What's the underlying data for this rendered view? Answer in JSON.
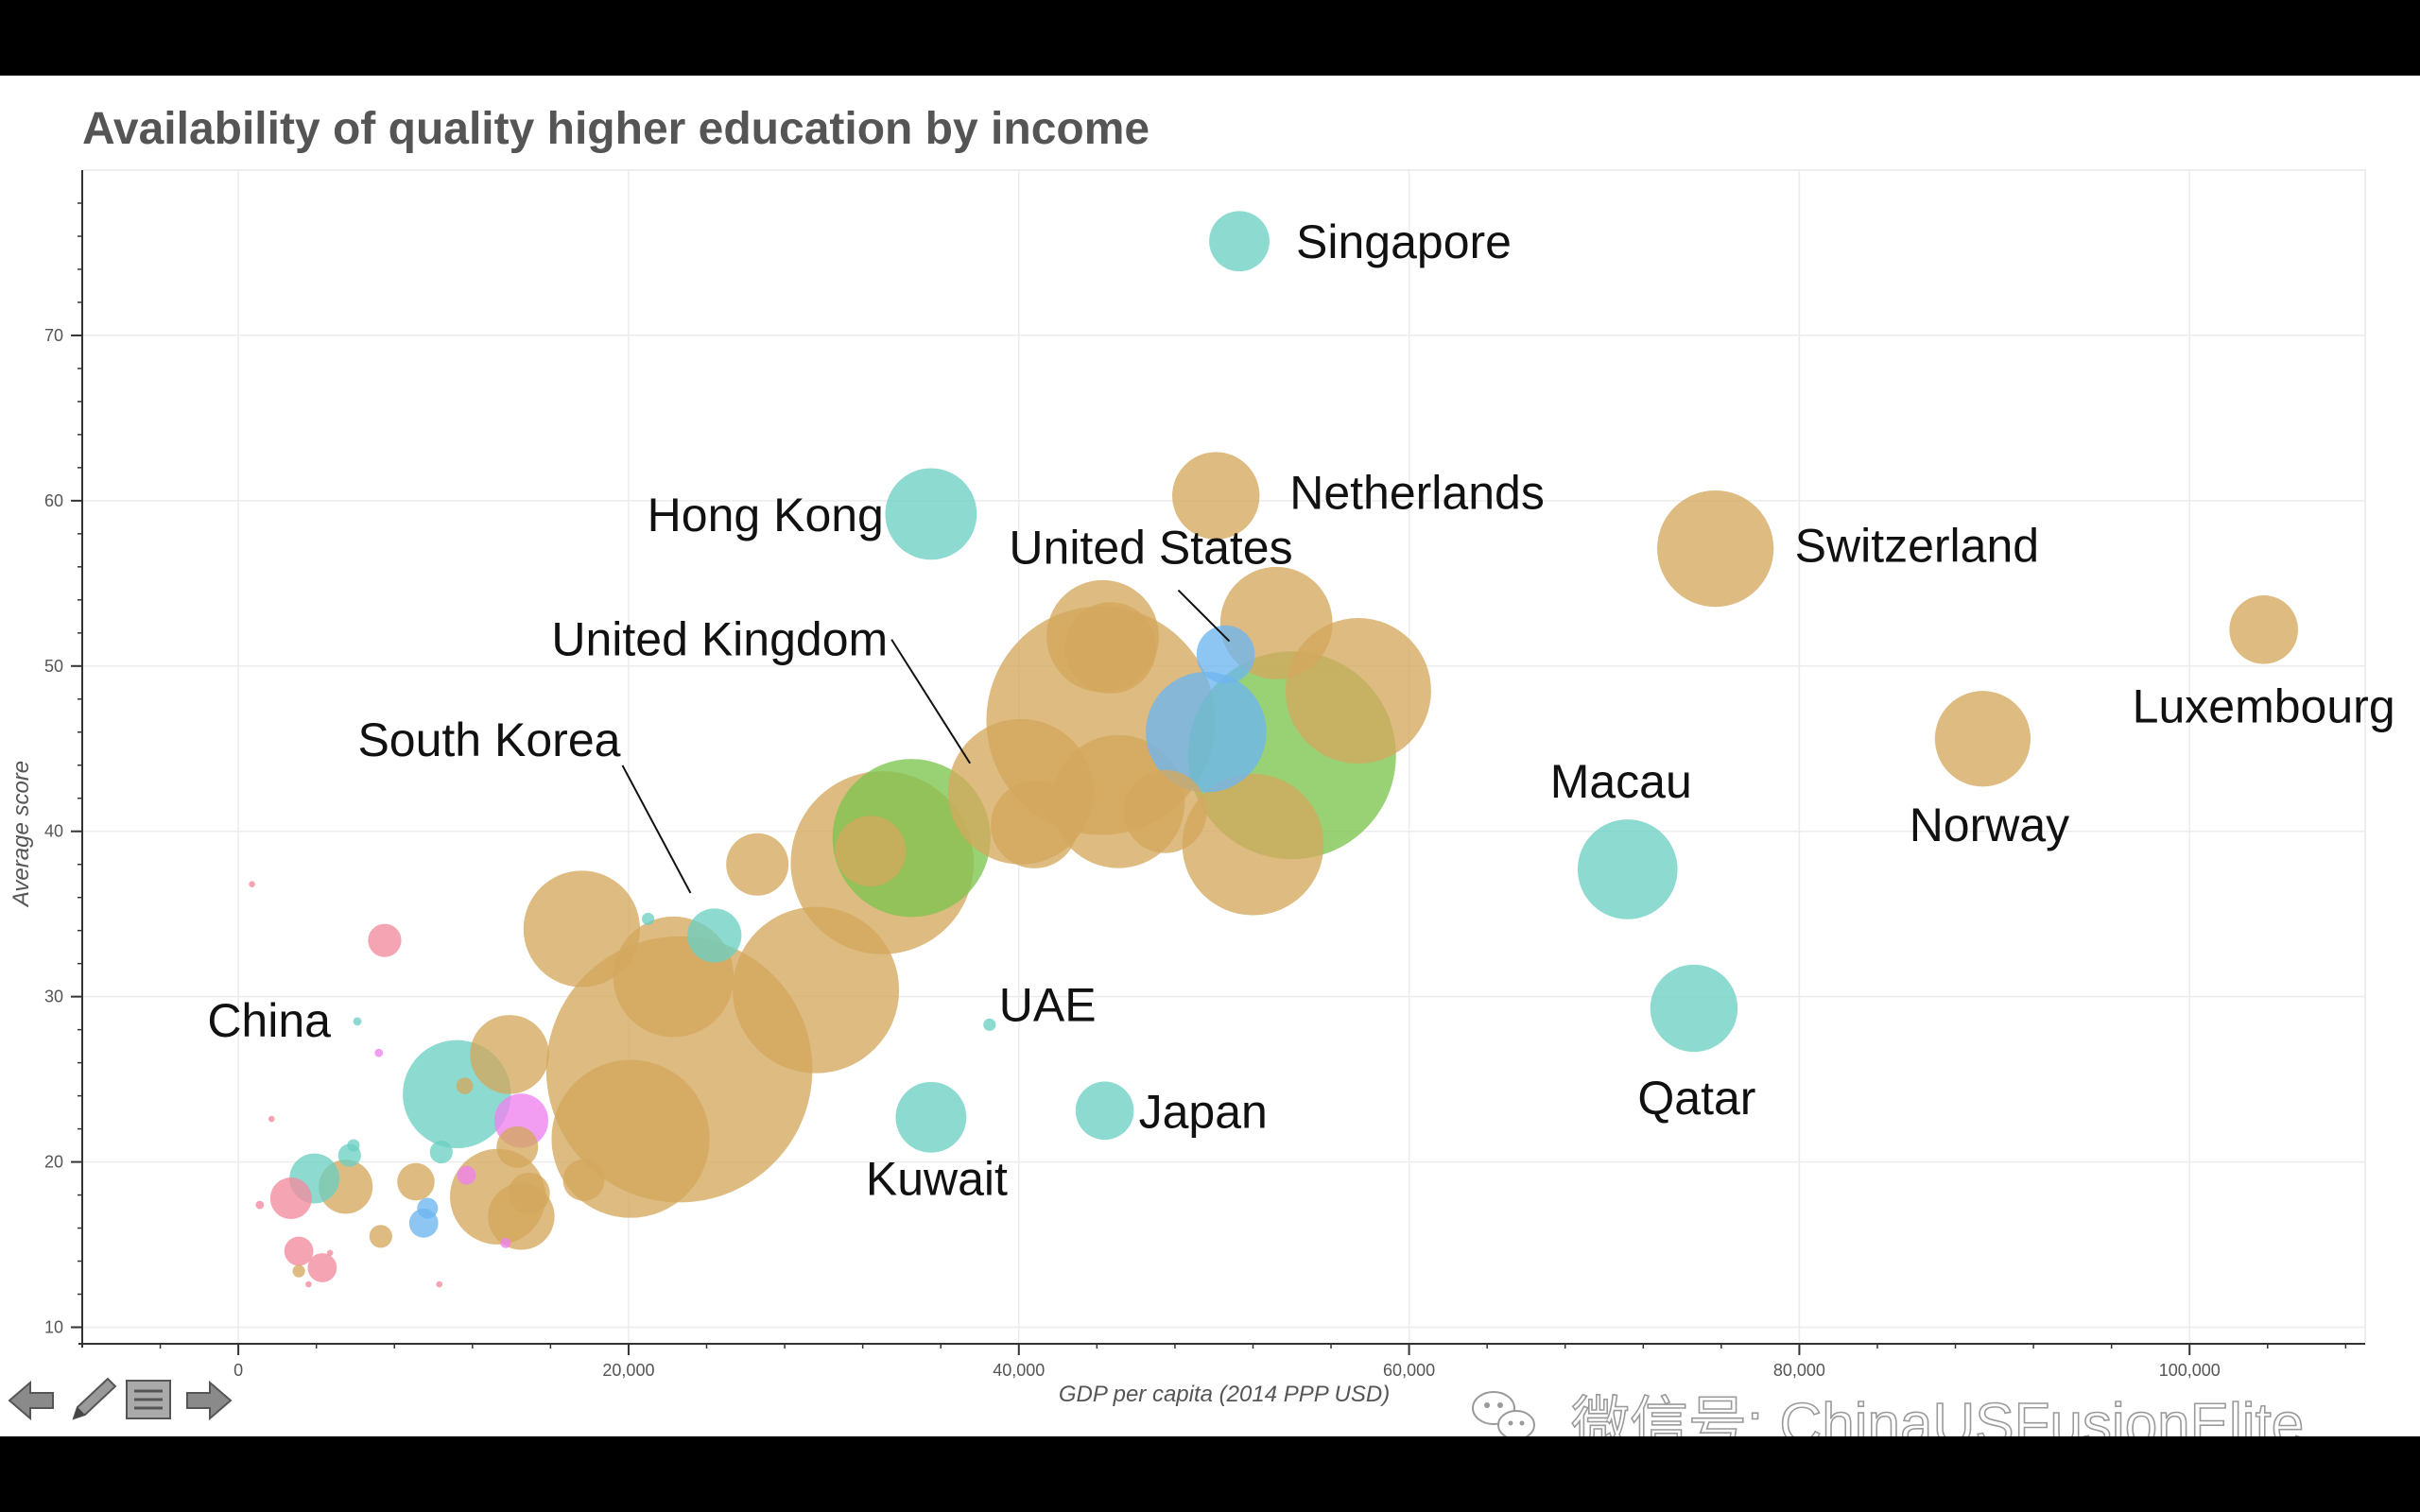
{
  "chart_data": {
    "type": "scatter",
    "title": "Availability of quality higher education by income",
    "xlabel": "GDP per capita (2014 PPP USD)",
    "ylabel": "Average score",
    "xlim": [
      -8000,
      109000
    ],
    "ylim": [
      9,
      80
    ],
    "xticks": [
      0,
      20000,
      40000,
      60000,
      80000,
      100000
    ],
    "xtick_labels": [
      "0",
      "20,000",
      "40,000",
      "60,000",
      "80,000",
      "100,000"
    ],
    "yticks": [
      10,
      20,
      30,
      40,
      50,
      60,
      70
    ],
    "ytick_labels": [
      "10",
      "20",
      "30",
      "40",
      "50",
      "60",
      "70"
    ],
    "grid": true,
    "bubble_size_encoding": "area",
    "colors": {
      "teal": "#6ccfc3",
      "gold": "#d4a85e",
      "green": "#7cc44e",
      "blue": "#6db6ef",
      "pink": "#f28b9d",
      "magenta": "#ee82ee"
    },
    "labels": [
      {
        "text": "Singapore",
        "x": 51300,
        "y": 75.7
      },
      {
        "text": "Hong Kong",
        "x": 35500,
        "y": 59.2
      },
      {
        "text": "Netherlands",
        "x": 50100,
        "y": 60.3
      },
      {
        "text": "Switzerland",
        "x": 75700,
        "y": 57.1
      },
      {
        "text": "Luxembourg",
        "x": 103800,
        "y": 52.2
      },
      {
        "text": "United States",
        "x": 50500,
        "y": 50.7
      },
      {
        "text": "United Kingdom",
        "x": 37500,
        "y": 44
      },
      {
        "text": "South Korea",
        "x": 23900,
        "y": 34.5
      },
      {
        "text": "Macau",
        "x": 71200,
        "y": 37.7
      },
      {
        "text": "Norway",
        "x": 89400,
        "y": 45.6
      },
      {
        "text": "China",
        "x": 6000,
        "y": 28.6
      },
      {
        "text": "UAE",
        "x": 38500,
        "y": 28.3
      },
      {
        "text": "Qatar",
        "x": 74600,
        "y": 29.3
      },
      {
        "text": "Kuwait",
        "x": 35500,
        "y": 22.7
      },
      {
        "text": "Japan",
        "x": 44400,
        "y": 23.1
      }
    ],
    "points": [
      {
        "x": 51300,
        "y": 75.7,
        "size": 29,
        "color": "teal"
      },
      {
        "x": 35500,
        "y": 59.2,
        "size": 44,
        "color": "teal"
      },
      {
        "x": 50100,
        "y": 60.3,
        "size": 42,
        "color": "gold"
      },
      {
        "x": 75700,
        "y": 57.1,
        "size": 56,
        "color": "gold"
      },
      {
        "x": 103800,
        "y": 52.2,
        "size": 33,
        "color": "gold"
      },
      {
        "x": 89400,
        "y": 45.6,
        "size": 46,
        "color": "gold"
      },
      {
        "x": 71200,
        "y": 37.7,
        "size": 48,
        "color": "teal"
      },
      {
        "x": 74600,
        "y": 29.3,
        "size": 42,
        "color": "teal"
      },
      {
        "x": 44400,
        "y": 23.1,
        "size": 28,
        "color": "teal"
      },
      {
        "x": 35500,
        "y": 22.7,
        "size": 34,
        "color": "teal"
      },
      {
        "x": 38500,
        "y": 28.3,
        "size": 6,
        "color": "teal"
      },
      {
        "x": 53200,
        "y": 52.6,
        "size": 54,
        "color": "gold"
      },
      {
        "x": 44300,
        "y": 51.8,
        "size": 54,
        "color": "gold"
      },
      {
        "x": 44700,
        "y": 51.1,
        "size": 44,
        "color": "gold"
      },
      {
        "x": 57400,
        "y": 48.5,
        "size": 70,
        "color": "gold"
      },
      {
        "x": 44200,
        "y": 46.7,
        "size": 110,
        "color": "gold"
      },
      {
        "x": 40100,
        "y": 42.4,
        "size": 70,
        "color": "gold"
      },
      {
        "x": 45100,
        "y": 41.8,
        "size": 64,
        "color": "gold"
      },
      {
        "x": 47500,
        "y": 41.2,
        "size": 40,
        "color": "gold"
      },
      {
        "x": 40800,
        "y": 40.4,
        "size": 42,
        "color": "gold"
      },
      {
        "x": 52000,
        "y": 39.2,
        "size": 68,
        "color": "gold"
      },
      {
        "x": 33000,
        "y": 38.1,
        "size": 88,
        "color": "gold"
      },
      {
        "x": 32400,
        "y": 38.8,
        "size": 34,
        "color": "gold"
      },
      {
        "x": 26600,
        "y": 38.0,
        "size": 30,
        "color": "gold"
      },
      {
        "x": 29600,
        "y": 30.4,
        "size": 80,
        "color": "gold"
      },
      {
        "x": 17600,
        "y": 34.1,
        "size": 56,
        "color": "gold"
      },
      {
        "x": 22300,
        "y": 31.2,
        "size": 58,
        "color": "gold"
      },
      {
        "x": 22600,
        "y": 25.6,
        "size": 128,
        "color": "gold"
      },
      {
        "x": 20100,
        "y": 21.4,
        "size": 76,
        "color": "gold"
      },
      {
        "x": 13900,
        "y": 26.5,
        "size": 38,
        "color": "gold"
      },
      {
        "x": 13300,
        "y": 17.9,
        "size": 46,
        "color": "gold"
      },
      {
        "x": 14500,
        "y": 16.7,
        "size": 32,
        "color": "gold"
      },
      {
        "x": 14900,
        "y": 18.1,
        "size": 20,
        "color": "gold"
      },
      {
        "x": 14300,
        "y": 20.9,
        "size": 20,
        "color": "gold"
      },
      {
        "x": 17700,
        "y": 18.9,
        "size": 20,
        "color": "gold"
      },
      {
        "x": 5500,
        "y": 18.5,
        "size": 26,
        "color": "gold"
      },
      {
        "x": 9100,
        "y": 18.8,
        "size": 18,
        "color": "gold"
      },
      {
        "x": 7300,
        "y": 15.5,
        "size": 11,
        "color": "gold"
      },
      {
        "x": 11600,
        "y": 24.6,
        "size": 8,
        "color": "gold"
      },
      {
        "x": 3100,
        "y": 13.4,
        "size": 6,
        "color": "gold"
      },
      {
        "x": 34500,
        "y": 39.6,
        "size": 76,
        "color": "green"
      },
      {
        "x": 54000,
        "y": 44.6,
        "size": 100,
        "color": "green"
      },
      {
        "x": 49600,
        "y": 46.0,
        "size": 58,
        "color": "blue"
      },
      {
        "x": 50600,
        "y": 50.7,
        "size": 28,
        "color": "blue"
      },
      {
        "x": 11200,
        "y": 24.1,
        "size": 52,
        "color": "teal"
      },
      {
        "x": 3900,
        "y": 19.0,
        "size": 24,
        "color": "teal"
      },
      {
        "x": 24400,
        "y": 33.7,
        "size": 26,
        "color": "teal"
      },
      {
        "x": 10400,
        "y": 20.6,
        "size": 11,
        "color": "teal"
      },
      {
        "x": 5700,
        "y": 20.4,
        "size": 11,
        "color": "teal"
      },
      {
        "x": 5900,
        "y": 21.0,
        "size": 6,
        "color": "teal"
      },
      {
        "x": 21000,
        "y": 34.7,
        "size": 6,
        "color": "teal"
      },
      {
        "x": 6100,
        "y": 28.5,
        "size": 4,
        "color": "teal"
      },
      {
        "x": 9500,
        "y": 16.3,
        "size": 14,
        "color": "blue"
      },
      {
        "x": 9700,
        "y": 17.2,
        "size": 10,
        "color": "blue"
      },
      {
        "x": 14500,
        "y": 22.5,
        "size": 26,
        "color": "magenta"
      },
      {
        "x": 11700,
        "y": 19.2,
        "size": 9,
        "color": "magenta"
      },
      {
        "x": 13700,
        "y": 15.1,
        "size": 5,
        "color": "magenta"
      },
      {
        "x": 7200,
        "y": 26.6,
        "size": 4,
        "color": "magenta"
      },
      {
        "x": 7500,
        "y": 33.4,
        "size": 16,
        "color": "pink"
      },
      {
        "x": 2700,
        "y": 17.8,
        "size": 20,
        "color": "pink"
      },
      {
        "x": 3100,
        "y": 14.6,
        "size": 14,
        "color": "pink"
      },
      {
        "x": 4300,
        "y": 13.6,
        "size": 14,
        "color": "pink"
      },
      {
        "x": 1100,
        "y": 17.4,
        "size": 4,
        "color": "pink"
      },
      {
        "x": 1700,
        "y": 22.6,
        "size": 3,
        "color": "pink"
      },
      {
        "x": 700,
        "y": 36.8,
        "size": 3,
        "color": "pink"
      },
      {
        "x": 4700,
        "y": 14.5,
        "size": 3,
        "color": "pink"
      },
      {
        "x": 3600,
        "y": 12.6,
        "size": 3,
        "color": "pink"
      },
      {
        "x": 10300,
        "y": 12.6,
        "size": 3,
        "color": "pink"
      }
    ]
  },
  "watermark": {
    "text": "微信号: ChinaUSFusionElite"
  },
  "nav_icons": [
    "arrow-left-icon",
    "pen-icon",
    "menu-icon",
    "arrow-right-icon"
  ]
}
